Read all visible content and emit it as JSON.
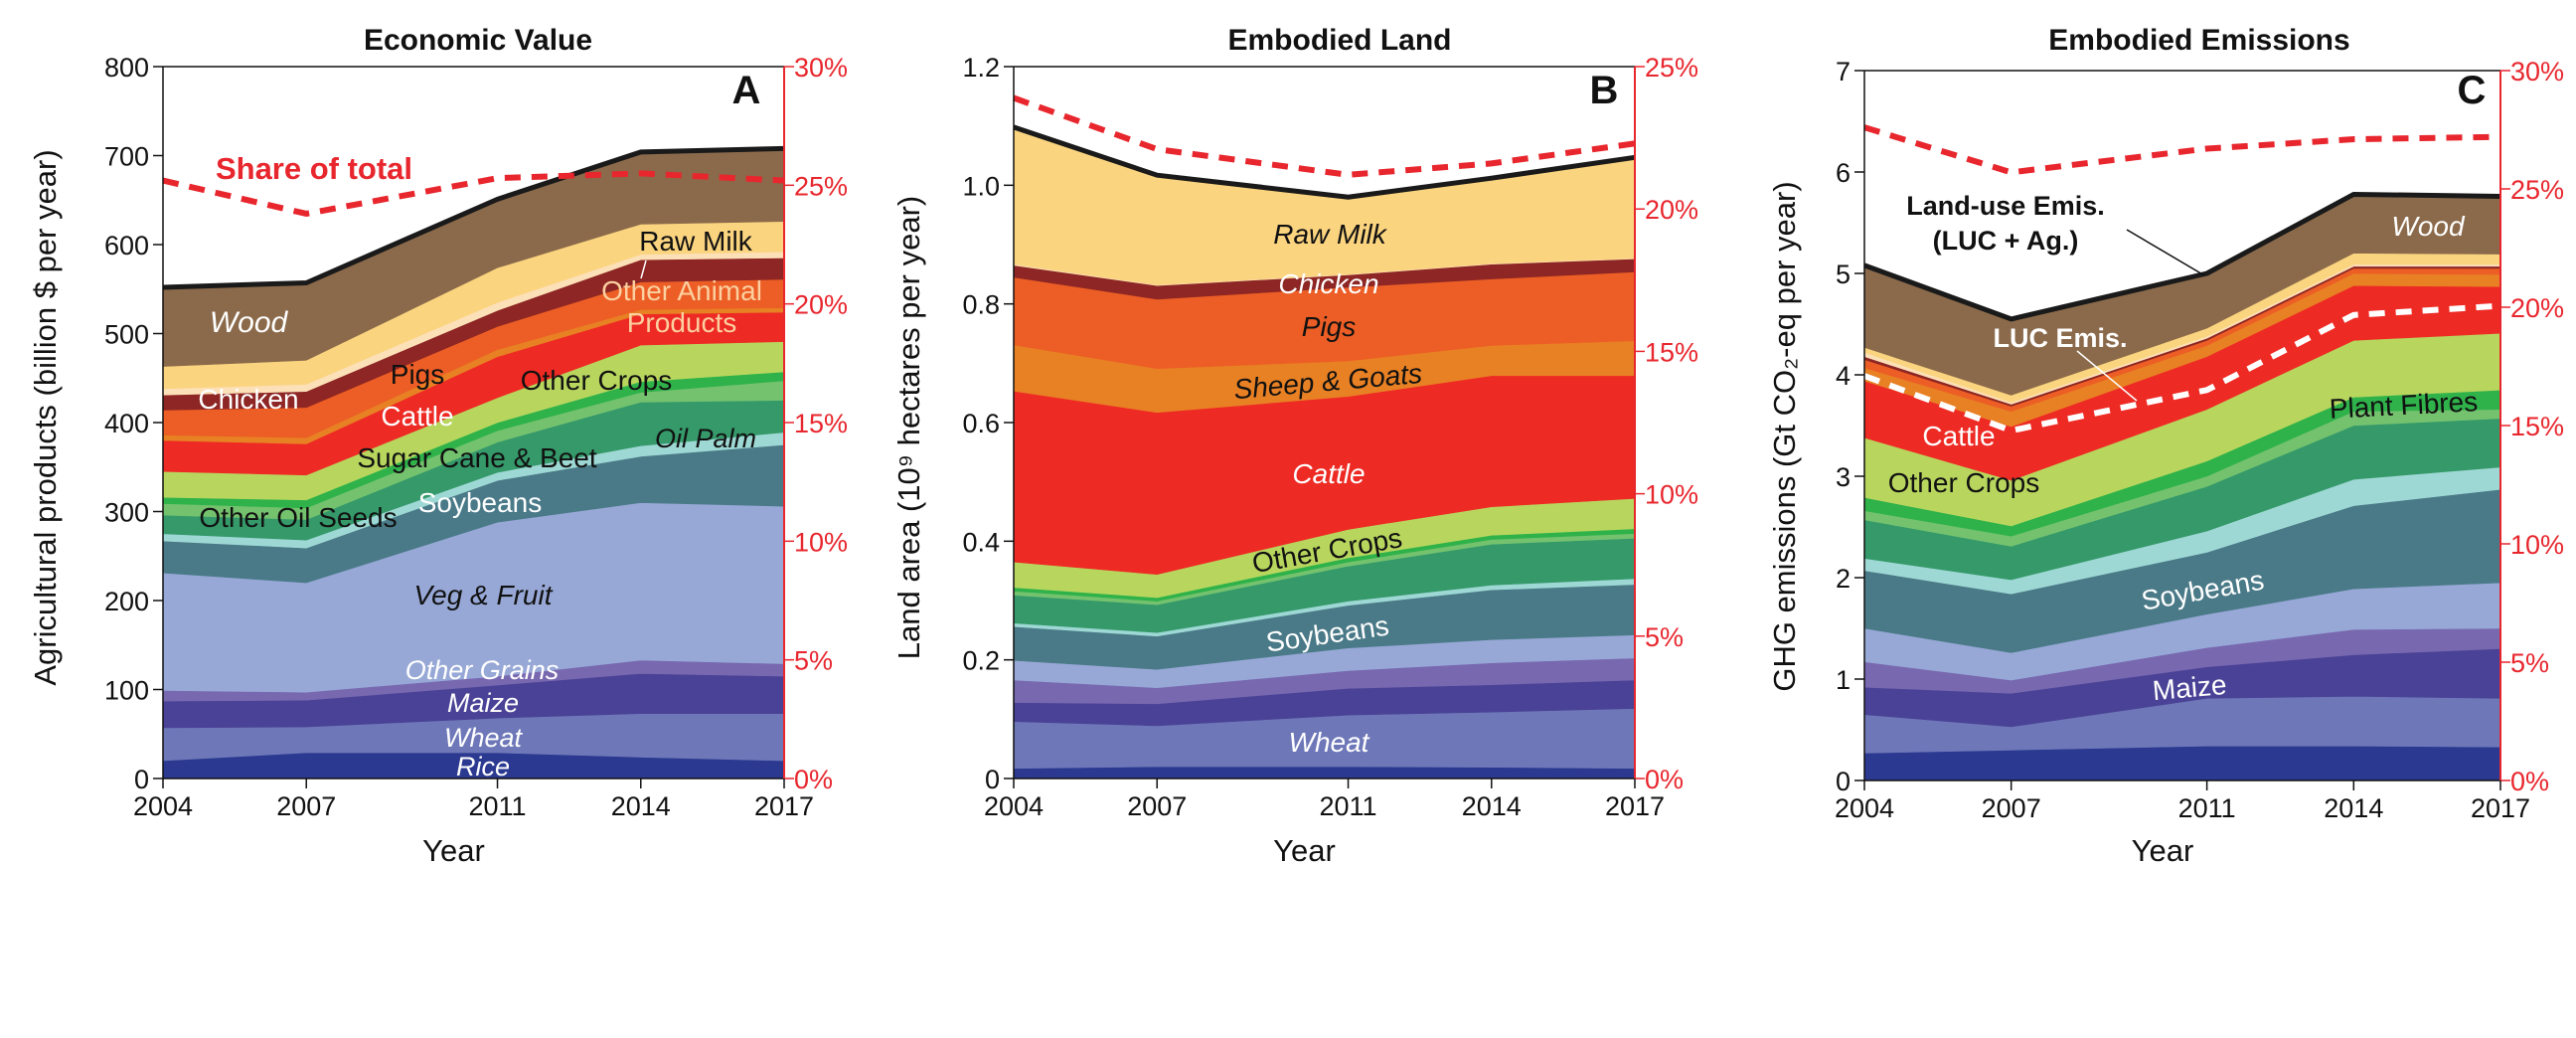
{
  "colors": {
    "accent_red": "#E8262D",
    "total_line": "#1A1A1A",
    "luc_line": "#FFFFFF"
  },
  "chart_data": [
    {
      "type": "area",
      "stacked": true,
      "title": "Economic Value",
      "panel_label": "A",
      "x": [
        2004,
        2007,
        2011,
        2014,
        2017
      ],
      "xticks": [
        "2004",
        "2007",
        "2011",
        "2014",
        "2017"
      ],
      "xlabel": "Year",
      "ylabel": "Agricultural products (billion $ per year)",
      "ylim": [
        0,
        800
      ],
      "yticks": [
        "0",
        "100",
        "200",
        "300",
        "400",
        "500",
        "600",
        "700",
        "800"
      ],
      "y2lim": [
        0,
        30
      ],
      "y2ticks": [
        "0%",
        "5%",
        "10%",
        "15%",
        "20%",
        "25%",
        "30%"
      ],
      "grid": false,
      "series": [
        {
          "name": "Rice",
          "color": "#2B3990",
          "values": [
            20,
            29,
            29,
            24,
            20
          ]
        },
        {
          "name": "Wheat",
          "color": "#6E78B8",
          "values": [
            37,
            29,
            39,
            49,
            53
          ]
        },
        {
          "name": "Maize",
          "color": "#4A4296",
          "values": [
            30,
            30,
            37,
            45,
            42
          ]
        },
        {
          "name": "Other Grains",
          "color": "#7868B0",
          "values": [
            12,
            9,
            10,
            15,
            14
          ]
        },
        {
          "name": "Veg & Fruit",
          "color": "#97A8D6",
          "values": [
            132,
            123,
            173,
            177,
            177
          ]
        },
        {
          "name": "Soybeans",
          "color": "#4A7A88",
          "values": [
            36,
            39,
            47,
            52,
            69
          ]
        },
        {
          "name": "Oil Palm",
          "color": "#9ED8D4",
          "values": [
            8,
            9,
            9,
            12,
            14
          ]
        },
        {
          "name": "Other Oil Seeds",
          "color": "#35996A",
          "values": [
            21,
            23,
            34,
            49,
            36
          ]
        },
        {
          "name": "Sugar Cane & Beet",
          "color": "#74C26E",
          "values": [
            13,
            13,
            13,
            11,
            22
          ]
        },
        {
          "name": "Plant Fibres",
          "color": "#2FB24A",
          "values": [
            7,
            9,
            9,
            12,
            10
          ]
        },
        {
          "name": "Other Crops",
          "color": "#B8D65E",
          "values": [
            29,
            28,
            28,
            41,
            34
          ]
        },
        {
          "name": "Cattle",
          "color": "#EE2A24",
          "values": [
            35,
            35,
            46,
            35,
            33
          ]
        },
        {
          "name": "Sheep & Goats",
          "color": "#E88024",
          "values": [
            6,
            7,
            8,
            5,
            5
          ]
        },
        {
          "name": "Pigs",
          "color": "#EC5E25",
          "values": [
            28,
            34,
            26,
            31,
            32
          ]
        },
        {
          "name": "Chicken",
          "color": "#8D2624",
          "values": [
            17,
            18,
            18,
            25,
            24
          ]
        },
        {
          "name": "Other Animal Products",
          "color": "#FCE0B8",
          "values": [
            7,
            8,
            9,
            6,
            7
          ]
        },
        {
          "name": "Raw Milk",
          "color": "#FBD47F",
          "values": [
            25,
            27,
            39,
            34,
            34
          ]
        },
        {
          "name": "Wood",
          "color": "#8B6A4B",
          "values": [
            89,
            87,
            77,
            81,
            82
          ]
        }
      ],
      "share_of_total": {
        "axis": "right",
        "unit": "%",
        "values": [
          25.2,
          23.8,
          25.3,
          25.5,
          25.2
        ]
      },
      "labels": [
        "Share of total",
        "Wood",
        "Raw Milk",
        "Chicken",
        "Pigs",
        "Cattle",
        "Other Crops",
        "Sugar Cane & Beet",
        "Other Oil Seeds",
        "Oil Palm",
        "Soybeans",
        "Veg & Fruit",
        "Other Grains",
        "Maize",
        "Wheat",
        "Rice",
        "Other Animal",
        "Products"
      ]
    },
    {
      "type": "area",
      "stacked": true,
      "title": "Embodied Land",
      "panel_label": "B",
      "x": [
        2004,
        2007,
        2011,
        2014,
        2017
      ],
      "xticks": [
        "2004",
        "2007",
        "2011",
        "2014",
        "2017"
      ],
      "xlabel": "Year",
      "ylabel": "Land area (10⁹ hectares per year)",
      "ylim": [
        0,
        1.2
      ],
      "yticks": [
        "0",
        "0.2",
        "0.4",
        "0.6",
        "0.8",
        "1.0",
        "1.2"
      ],
      "y2lim": [
        0,
        25
      ],
      "y2ticks": [
        "0%",
        "5%",
        "10%",
        "15%",
        "20%",
        "25%"
      ],
      "grid": false,
      "series": [
        {
          "name": "Rice",
          "color": "#2B3990",
          "values": [
            0.017,
            0.02,
            0.02,
            0.019,
            0.017
          ]
        },
        {
          "name": "Wheat",
          "color": "#6E78B8",
          "values": [
            0.079,
            0.069,
            0.087,
            0.093,
            0.101
          ]
        },
        {
          "name": "Maize",
          "color": "#4A4296",
          "values": [
            0.032,
            0.037,
            0.045,
            0.046,
            0.048
          ]
        },
        {
          "name": "Other Grains",
          "color": "#7868B0",
          "values": [
            0.038,
            0.027,
            0.03,
            0.037,
            0.037
          ]
        },
        {
          "name": "Veg & Fruit",
          "color": "#97A8D6",
          "values": [
            0.033,
            0.031,
            0.038,
            0.039,
            0.039
          ]
        },
        {
          "name": "Soybeans",
          "color": "#4A7A88",
          "values": [
            0.057,
            0.056,
            0.072,
            0.084,
            0.085
          ]
        },
        {
          "name": "Oil Palm",
          "color": "#9ED8D4",
          "values": [
            0.006,
            0.006,
            0.007,
            0.008,
            0.01
          ]
        },
        {
          "name": "Other Oil Seeds",
          "color": "#35996A",
          "values": [
            0.047,
            0.047,
            0.059,
            0.069,
            0.068
          ]
        },
        {
          "name": "Sugar Cane & Beet",
          "color": "#74C26E",
          "values": [
            0.007,
            0.006,
            0.007,
            0.008,
            0.008
          ]
        },
        {
          "name": "Plant Fibres",
          "color": "#2FB24A",
          "values": [
            0.006,
            0.006,
            0.007,
            0.007,
            0.008
          ]
        },
        {
          "name": "Other Crops",
          "color": "#B8D65E",
          "values": [
            0.043,
            0.039,
            0.048,
            0.048,
            0.051
          ]
        },
        {
          "name": "Cattle",
          "color": "#EE2A24",
          "values": [
            0.288,
            0.273,
            0.224,
            0.221,
            0.207
          ]
        },
        {
          "name": "Sheep & Goats",
          "color": "#E88024",
          "values": [
            0.078,
            0.074,
            0.06,
            0.051,
            0.059
          ]
        },
        {
          "name": "Pigs",
          "color": "#EC5E25",
          "values": [
            0.114,
            0.117,
            0.124,
            0.112,
            0.116
          ]
        },
        {
          "name": "Chicken",
          "color": "#8D2624",
          "values": [
            0.02,
            0.023,
            0.021,
            0.025,
            0.022
          ]
        },
        {
          "name": "Other Animal Products",
          "color": "#FCE0B8",
          "values": [
            0.002,
            0.001,
            0.001,
            0.001,
            0.001
          ]
        },
        {
          "name": "Raw Milk",
          "color": "#FBD47F",
          "values": [
            0.231,
            0.185,
            0.13,
            0.144,
            0.17
          ]
        },
        {
          "name": "Wood",
          "color": "#8B6A4B",
          "values": [
            0,
            0,
            0,
            0,
            0
          ]
        }
      ],
      "share_of_total": {
        "axis": "right",
        "unit": "%",
        "values": [
          23.9,
          22.1,
          21.2,
          21.6,
          22.3
        ]
      },
      "labels": [
        "Raw Milk",
        "Chicken",
        "Pigs",
        "Sheep & Goats",
        "Cattle",
        "Other Crops",
        "Soybeans",
        "Wheat"
      ]
    },
    {
      "type": "area",
      "stacked": true,
      "title": "Embodied Emissions",
      "panel_label": "C",
      "x": [
        2004,
        2007,
        2011,
        2014,
        2017
      ],
      "xticks": [
        "2004",
        "2007",
        "2011",
        "2014",
        "2017"
      ],
      "xlabel": "Year",
      "ylabel": "GHG emissions (Gt CO₂-eq per year)",
      "ylim": [
        0,
        7
      ],
      "yticks": [
        "0",
        "1",
        "2",
        "3",
        "4",
        "5",
        "6",
        "7"
      ],
      "y2lim": [
        0,
        30
      ],
      "y2ticks": [
        "0%",
        "5%",
        "10%",
        "15%",
        "20%",
        "25%",
        "30%"
      ],
      "grid": false,
      "series": [
        {
          "name": "Rice",
          "color": "#2B3990",
          "values": [
            0.27,
            0.3,
            0.34,
            0.34,
            0.33
          ]
        },
        {
          "name": "Wheat",
          "color": "#6E78B8",
          "values": [
            0.38,
            0.23,
            0.47,
            0.49,
            0.48
          ]
        },
        {
          "name": "Maize",
          "color": "#4A4296",
          "values": [
            0.27,
            0.33,
            0.31,
            0.41,
            0.49
          ]
        },
        {
          "name": "Other Grains",
          "color": "#7868B0",
          "values": [
            0.25,
            0.13,
            0.19,
            0.25,
            0.2
          ]
        },
        {
          "name": "Veg & Fruit",
          "color": "#97A8D6",
          "values": [
            0.33,
            0.27,
            0.33,
            0.4,
            0.45
          ]
        },
        {
          "name": "Soybeans",
          "color": "#4A7A88",
          "values": [
            0.57,
            0.58,
            0.61,
            0.82,
            0.92
          ]
        },
        {
          "name": "Oil Palm",
          "color": "#9ED8D4",
          "values": [
            0.12,
            0.14,
            0.21,
            0.26,
            0.22
          ]
        },
        {
          "name": "Other Oil Seeds",
          "color": "#35996A",
          "values": [
            0.38,
            0.33,
            0.44,
            0.53,
            0.48
          ]
        },
        {
          "name": "Sugar Cane & Beet",
          "color": "#74C26E",
          "values": [
            0.09,
            0.1,
            0.1,
            0.14,
            0.09
          ]
        },
        {
          "name": "Plant Fibres",
          "color": "#2FB24A",
          "values": [
            0.13,
            0.1,
            0.15,
            0.14,
            0.19
          ]
        },
        {
          "name": "Other Crops",
          "color": "#B8D65E",
          "values": [
            0.59,
            0.45,
            0.51,
            0.56,
            0.56
          ]
        },
        {
          "name": "Cattle",
          "color": "#EE2A24",
          "values": [
            0.56,
            0.53,
            0.52,
            0.54,
            0.46
          ]
        },
        {
          "name": "Sheep & Goats",
          "color": "#E88024",
          "values": [
            0.13,
            0.15,
            0.11,
            0.12,
            0.12
          ]
        },
        {
          "name": "Pigs",
          "color": "#EC5E25",
          "values": [
            0.08,
            0.05,
            0.05,
            0.05,
            0.06
          ]
        },
        {
          "name": "Chicken",
          "color": "#8D2624",
          "values": [
            0.03,
            0.02,
            0.02,
            0.02,
            0.02
          ]
        },
        {
          "name": "Other Animal Products",
          "color": "#FCE0B8",
          "values": [
            0.04,
            0.02,
            0.02,
            0.02,
            0.02
          ]
        },
        {
          "name": "Raw Milk",
          "color": "#FBD47F",
          "values": [
            0.05,
            0.07,
            0.08,
            0.11,
            0.1
          ]
        },
        {
          "name": "Wood",
          "color": "#8B6A4B",
          "values": [
            0.81,
            0.75,
            0.54,
            0.58,
            0.57
          ]
        }
      ],
      "share_of_total": {
        "axis": "right",
        "unit": "%",
        "values": [
          27.6,
          25.7,
          26.7,
          27.1,
          27.2
        ]
      },
      "luc_emissions": {
        "axis": "left",
        "values": [
          3.99,
          3.45,
          3.85,
          4.59,
          4.68
        ]
      },
      "labels": [
        "Land-use Emis.",
        "(LUC + Ag.)",
        "LUC Emis.",
        "Wood",
        "Plant Fibres",
        "Cattle",
        "Other Crops",
        "Soybeans",
        "Maize"
      ]
    }
  ]
}
